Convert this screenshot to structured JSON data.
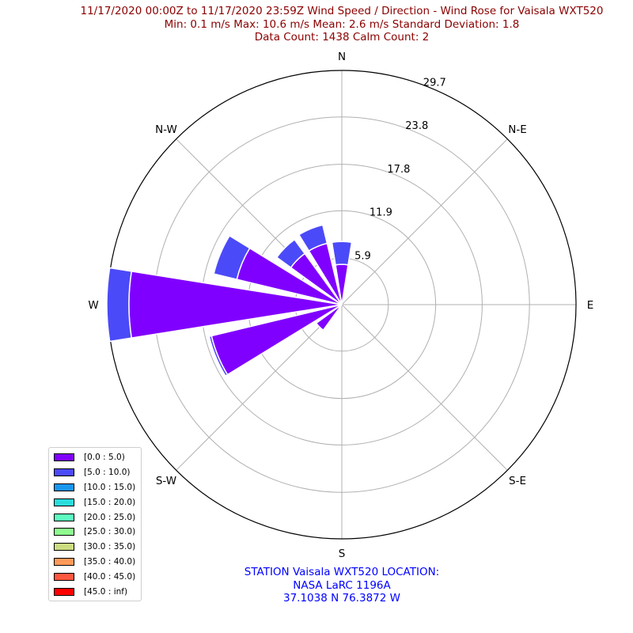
{
  "header": {
    "line1": "11/17/2020 00:00Z to 11/17/2020 23:59Z Wind Speed / Direction - Wind Rose for Vaisala WXT520",
    "line2": "Min: 0.1 m/s   Max: 10.6 m/s   Mean: 2.6 m/s  Standard Deviation: 1.8",
    "line3": "Data Count: 1438  Calm Count:  2"
  },
  "footer": {
    "line1": "STATION Vaisala WXT520 LOCATION:",
    "line2": "NASA LaRC 1196A",
    "line3": "37.1038 N 76.3872 W"
  },
  "colors": {
    "title": "#8b0000",
    "station": "#0000ff",
    "grid": "#b0b0b0"
  },
  "chart_data": {
    "type": "wind-rose",
    "directions": [
      "N",
      "N-E",
      "E",
      "S-E",
      "S",
      "S-W",
      "W",
      "N-W"
    ],
    "radial_ticks": [
      "5.9",
      "11.9",
      "17.8",
      "23.8",
      "29.7"
    ],
    "radial_max": 29.7,
    "bins": [
      {
        "label": "[0.0 : 5.0)",
        "color": "#8000ff"
      },
      {
        "label": "[5.0 : 10.0)",
        "color": "#4b4af8"
      },
      {
        "label": "[10.0 : 15.0)",
        "color": "#1996f0"
      },
      {
        "label": "[15.0 : 20.0)",
        "color": "#2adcdc"
      },
      {
        "label": "[20.0 : 25.0)",
        "color": "#5dfcc0"
      },
      {
        "label": "[25.0 : 30.0)",
        "color": "#90fc90"
      },
      {
        "label": "[30.0 : 35.0)",
        "color": "#cbdc80"
      },
      {
        "label": "[35.0 : 40.0)",
        "color": "#ff9a5a"
      },
      {
        "label": "[40.0 : 45.0)",
        "color": "#ff5840"
      },
      {
        "label": "[45.0 : inf)",
        "color": "#ff0000"
      }
    ],
    "sectors": [
      {
        "direction": 0,
        "bins": [
          5.1,
          2.9
        ]
      },
      {
        "direction": 337.5,
        "bins": [
          8.0,
          2.4
        ]
      },
      {
        "direction": 315,
        "bins": [
          8.0,
          2.2
        ]
      },
      {
        "direction": 292.5,
        "bins": [
          13.7,
          3.0
        ]
      },
      {
        "direction": 270,
        "bins": [
          27.0,
          2.8
        ]
      },
      {
        "direction": 247.5,
        "bins": [
          17.0,
          0.3
        ]
      },
      {
        "direction": 225,
        "bins": [
          4.0,
          0.0
        ]
      }
    ]
  }
}
